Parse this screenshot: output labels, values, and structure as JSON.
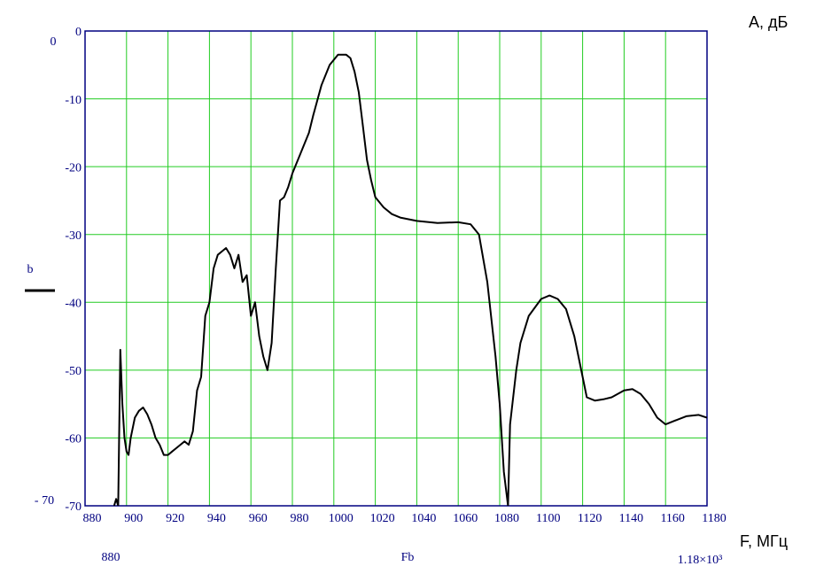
{
  "chart_data": {
    "type": "line",
    "y_range_max_label": "0",
    "y_range_min_label": "- 70",
    "x_range_min_label": "880",
    "x_range_max_label": "1.18×10³",
    "y_label": "b",
    "x_label": "Fb",
    "y_unit_label": "A, дБ",
    "x_unit_label": "F, МГц",
    "xlim": [
      880,
      1180
    ],
    "xticks": [
      880,
      900,
      920,
      940,
      960,
      980,
      1000,
      1020,
      1040,
      1060,
      1080,
      1100,
      1120,
      1140,
      1160,
      1180
    ],
    "ylim": [
      -70,
      0
    ],
    "yticks": [
      0,
      -10,
      -20,
      -30,
      -40,
      -50,
      -60,
      -70
    ],
    "grid": true,
    "grid_color": "#22cc22",
    "frame_color": "#000080",
    "x": [
      894,
      895,
      896,
      897,
      898,
      899,
      900,
      901,
      902,
      904,
      906,
      908,
      910,
      912,
      914,
      916,
      918,
      920,
      922,
      924,
      926,
      928,
      930,
      932,
      934,
      936,
      938,
      940,
      942,
      944,
      946,
      948,
      950,
      952,
      954,
      956,
      958,
      960,
      962,
      964,
      966,
      968,
      970,
      972,
      974,
      976,
      978,
      980,
      984,
      988,
      990,
      994,
      998,
      1002,
      1006,
      1008,
      1010,
      1012,
      1014,
      1016,
      1018,
      1020,
      1024,
      1028,
      1032,
      1040,
      1050,
      1060,
      1066,
      1070,
      1074,
      1078,
      1080,
      1082,
      1084,
      1085,
      1088,
      1090,
      1094,
      1100,
      1104,
      1108,
      1112,
      1116,
      1120,
      1122,
      1126,
      1130,
      1134,
      1140,
      1144,
      1148,
      1152,
      1156,
      1160,
      1164,
      1170,
      1176,
      1180
    ],
    "series": [
      {
        "name": "b",
        "color": "#000000",
        "values": [
          -70,
          -69,
          -70,
          -47,
          -55,
          -60,
          -62,
          -62.5,
          -60,
          -57,
          -56,
          -55.5,
          -56.5,
          -58,
          -60,
          -61,
          -62.5,
          -62.5,
          -62,
          -61.5,
          -61,
          -60.5,
          -61,
          -59,
          -53,
          -51,
          -42,
          -40,
          -35,
          -33,
          -32.5,
          -32,
          -33,
          -35,
          -33,
          -37,
          -36,
          -42,
          -40,
          -45,
          -48,
          -50,
          -46,
          -35,
          -25,
          -24.5,
          -23,
          -21,
          -18,
          -15,
          -12.5,
          -8,
          -5,
          -3.5,
          -3.5,
          -4,
          -6,
          -9,
          -14,
          -19,
          -22,
          -24.5,
          -26,
          -27,
          -27.5,
          -28,
          -28.3,
          -28.2,
          -28.5,
          -30,
          -37,
          -48,
          -55,
          -65,
          -70,
          -58,
          -50,
          -46,
          -42,
          -39.5,
          -39,
          -39.5,
          -41,
          -45,
          -51,
          -54,
          -54.5,
          -54.3,
          -54,
          -53,
          -52.8,
          -53.5,
          -55,
          -57,
          -58,
          -57.5,
          -56.8,
          -56.6,
          -57
        ]
      }
    ]
  }
}
